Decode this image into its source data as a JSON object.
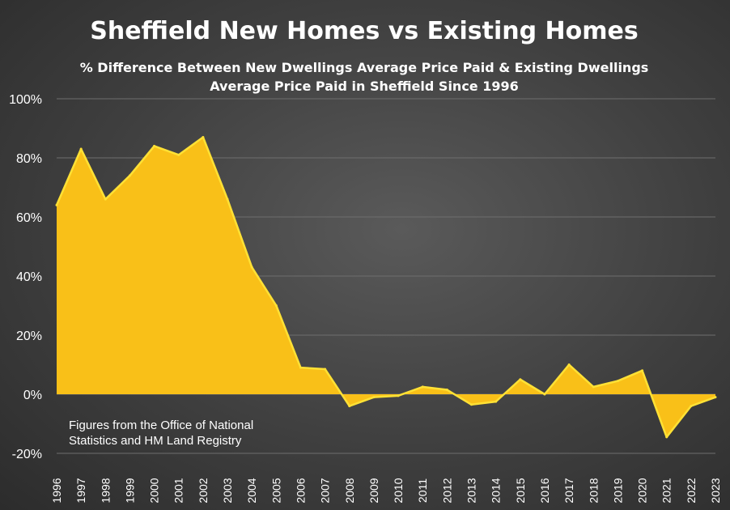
{
  "chart_data": {
    "type": "area",
    "title": "Sheffield New Homes vs Existing Homes",
    "subtitle_lines": [
      "% Difference Between New Dwellings Average Price Paid & Existing Dwellings",
      "Average Price Paid in Sheffield Since 1996"
    ],
    "annotation_lines": [
      "Figures from the Office of National",
      "Statistics and HM Land Registry"
    ],
    "x": [
      "1996",
      "1997",
      "1998",
      "1999",
      "2000",
      "2001",
      "2002",
      "2003",
      "2004",
      "2005",
      "2006",
      "2007",
      "2008",
      "2009",
      "2010",
      "2011",
      "2012",
      "2013",
      "2014",
      "2015",
      "2016",
      "2017",
      "2018",
      "2019",
      "2020",
      "2021",
      "2022",
      "2023"
    ],
    "values": [
      64,
      83,
      66,
      74,
      84,
      81,
      87,
      66,
      43,
      30,
      9,
      8.5,
      -4,
      -1,
      -0.5,
      2.5,
      1.5,
      -3.5,
      -2.5,
      5,
      0,
      10,
      2.5,
      4.5,
      8,
      -14.5,
      -4,
      -1
    ],
    "ylim": [
      -20,
      100
    ],
    "yticks": [
      -20,
      0,
      20,
      40,
      60,
      80,
      100
    ],
    "ytick_labels": [
      "-20%",
      "0%",
      "20%",
      "40%",
      "60%",
      "80%",
      "100%"
    ],
    "grid": true,
    "colors": {
      "fill": "#F9C018",
      "line": "#FFE135",
      "grid": "#6e6e6e"
    }
  }
}
